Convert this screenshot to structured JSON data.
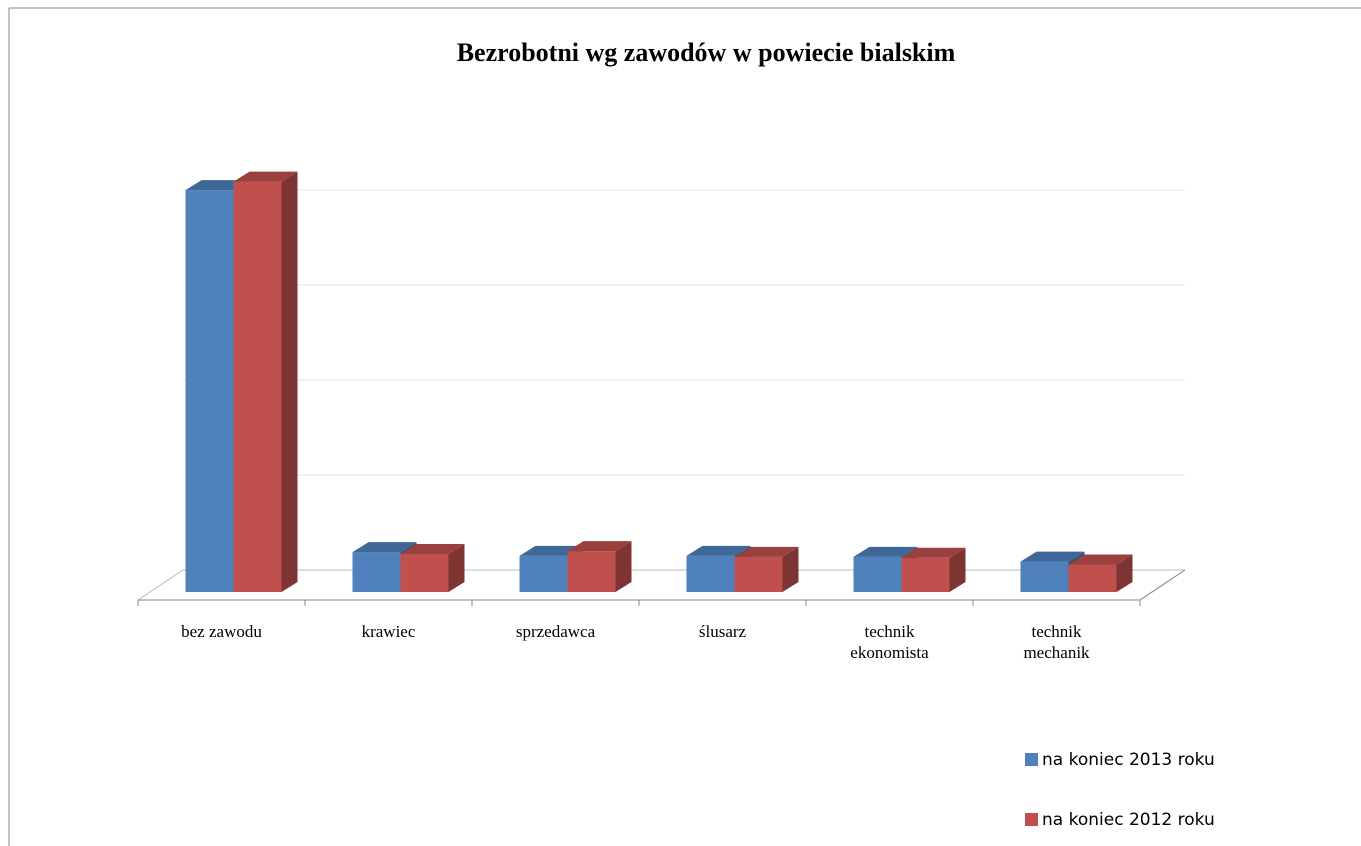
{
  "chart_data": {
    "type": "bar3d",
    "title": "Bezrobotni wg zawodów w powiecie bialskim",
    "categories": [
      "bez zawodu",
      "krawiec",
      "sprzedawca",
      "ślusarz",
      "technik ekonomista",
      "technik mechanik"
    ],
    "series": [
      {
        "name": "na koniec 2013 roku",
        "color": "#4f81bd",
        "values": [
          4.23,
          0.42,
          0.38,
          0.38,
          0.37,
          0.32
        ]
      },
      {
        "name": "na koniec 2012 roku",
        "color": "#c0504d",
        "values": [
          4.32,
          0.4,
          0.43,
          0.37,
          0.36,
          0.29
        ]
      }
    ],
    "ylim": [
      0,
      4.5
    ],
    "yticks": [
      0,
      1,
      2,
      3,
      4
    ],
    "grid": true,
    "legend": "right"
  }
}
